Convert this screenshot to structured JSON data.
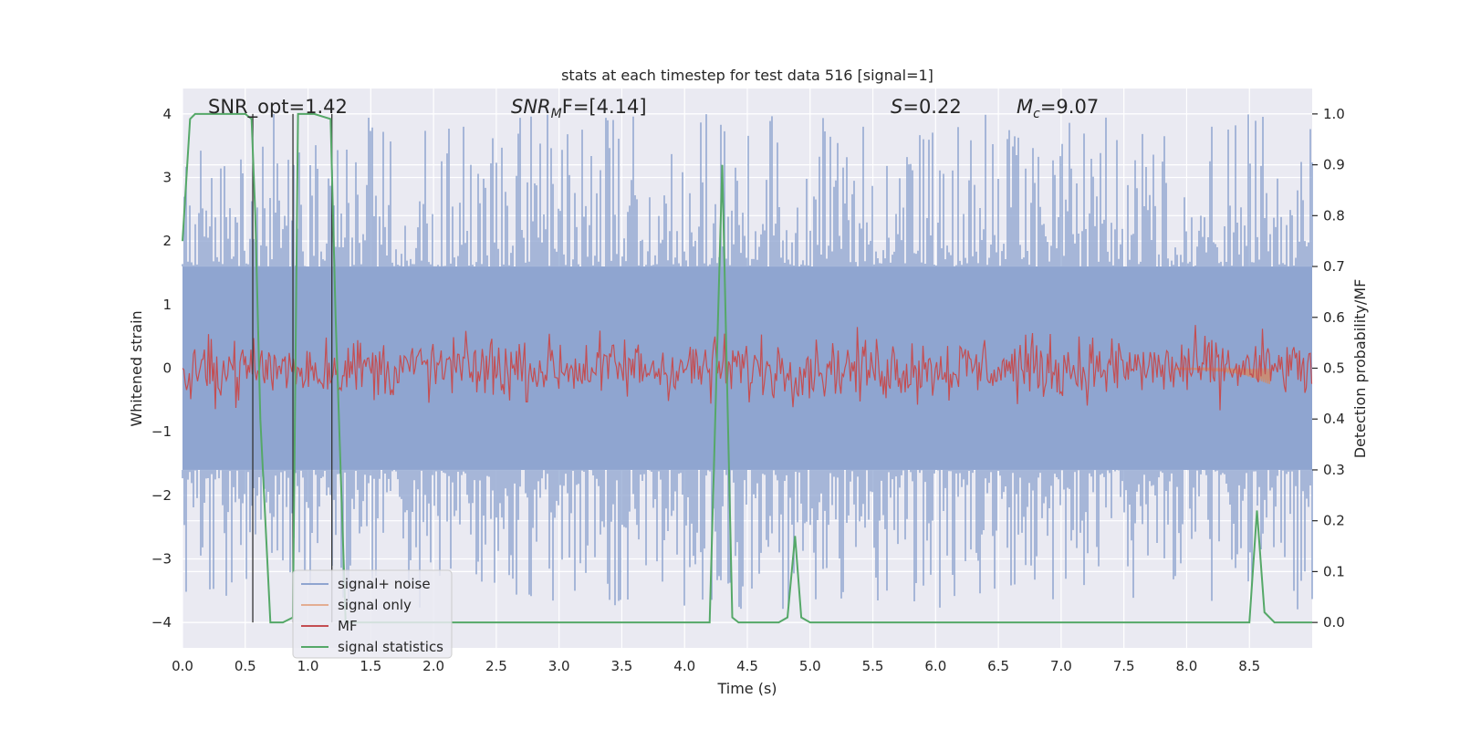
{
  "chart_data": {
    "type": "line",
    "title": "stats at each timestep for test data 516 [signal=1]",
    "xlabel": "Time (s)",
    "ylabel": "Whitened strain",
    "y2label": "Detection probability/MF",
    "xlim": [
      0.0,
      9.0
    ],
    "ylim": [
      -4.4,
      4.4
    ],
    "y2lim": [
      -0.05,
      1.05
    ],
    "xticks": [
      "0.0",
      "0.5",
      "1.0",
      "1.5",
      "2.0",
      "2.5",
      "3.0",
      "3.5",
      "4.0",
      "4.5",
      "5.0",
      "5.5",
      "6.0",
      "6.5",
      "7.0",
      "7.5",
      "8.0",
      "8.5"
    ],
    "yticks": [
      "4",
      "3",
      "2",
      "1",
      "0",
      "−1",
      "−2",
      "−3",
      "−4"
    ],
    "y2ticks": [
      "1.0",
      "0.9",
      "0.8",
      "0.7",
      "0.6",
      "0.5",
      "0.4",
      "0.3",
      "0.2",
      "0.1",
      "0.0"
    ],
    "grid": true,
    "legend_position": "lower-left",
    "annotations": {
      "snr_opt": "SNR_opt=1.42",
      "snr_mf_base": "SNR",
      "snr_mf_sub": "M",
      "snr_mf_rest": "F=[4.14]",
      "s_label": "S",
      "s_rest": "=0.22",
      "mc_base": "M",
      "mc_sub": "c",
      "mc_rest": "=9.07"
    },
    "colors": {
      "background": "#eaeaf2",
      "grid": "#ffffff",
      "noise": "#8fa5d0",
      "signal_only": "#dd8452",
      "mf": "#c44e52",
      "statistics": "#55a868",
      "vlines": "#333333"
    },
    "vertical_lines_x": [
      0.56,
      0.88,
      1.19
    ],
    "noise": {
      "envelope_upper": 1.6,
      "envelope_lower": -1.6,
      "peak_max": 4.0,
      "peak_min": -3.8
    },
    "mf": {
      "center": 0.5,
      "amplitude": 0.06,
      "note_range": [
        0.43,
        0.62
      ]
    },
    "signal_only": {
      "start": 7.9,
      "end": 8.67,
      "min_value": -0.25
    },
    "series": [
      {
        "name": "signal+ noise",
        "kind": "noise"
      },
      {
        "name": "signal only",
        "kind": "signal_only"
      },
      {
        "name": "MF",
        "kind": "mf"
      },
      {
        "name": "signal statistics",
        "kind": "statistics",
        "x": [
          0.0,
          0.06,
          0.1,
          0.15,
          0.5,
          0.55,
          0.58,
          0.62,
          0.7,
          0.8,
          0.88,
          0.92,
          0.97,
          1.05,
          1.18,
          1.22,
          1.3,
          1.4,
          2.0,
          3.0,
          4.0,
          4.2,
          4.3,
          4.38,
          4.43,
          4.5,
          4.75,
          4.82,
          4.88,
          4.93,
          5.0,
          6.0,
          7.0,
          8.0,
          8.5,
          8.56,
          8.62,
          8.7,
          9.0
        ],
        "y": [
          0.75,
          0.99,
          1.0,
          1.0,
          1.0,
          0.99,
          0.8,
          0.4,
          0.0,
          0.0,
          0.01,
          1.0,
          1.0,
          1.0,
          0.99,
          0.6,
          0.0,
          0.0,
          0.0,
          0.0,
          0.0,
          0.0,
          0.9,
          0.01,
          0.0,
          0.0,
          0.0,
          0.01,
          0.17,
          0.01,
          0.0,
          0.0,
          0.0,
          0.0,
          0.0,
          0.22,
          0.02,
          0.0,
          0.0
        ]
      }
    ]
  }
}
